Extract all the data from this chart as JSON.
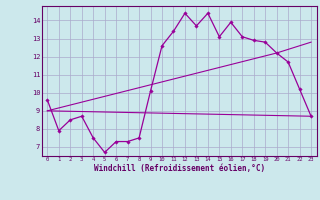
{
  "xlabel": "Windchill (Refroidissement éolien,°C)",
  "bg_color": "#cce8ec",
  "grid_color": "#aaaacc",
  "line_color": "#990099",
  "spine_color": "#660066",
  "x_ticks": [
    0,
    1,
    2,
    3,
    4,
    5,
    6,
    7,
    8,
    9,
    10,
    11,
    12,
    13,
    14,
    15,
    16,
    17,
    18,
    19,
    20,
    21,
    22,
    23
  ],
  "y_ticks": [
    7,
    8,
    9,
    10,
    11,
    12,
    13,
    14
  ],
  "ylim": [
    6.5,
    14.8
  ],
  "xlim": [
    -0.5,
    23.5
  ],
  "curve1_x": [
    0,
    1,
    2,
    3,
    4,
    5,
    6,
    7,
    8,
    9,
    10,
    11,
    12,
    13,
    14,
    15,
    16,
    17,
    18,
    19,
    20,
    21,
    22,
    23
  ],
  "curve1_y": [
    9.6,
    7.9,
    8.5,
    8.7,
    7.5,
    6.7,
    7.3,
    7.3,
    7.5,
    10.1,
    12.6,
    13.4,
    14.4,
    13.7,
    14.4,
    13.1,
    13.9,
    13.1,
    12.9,
    12.8,
    12.2,
    11.7,
    10.2,
    8.7
  ],
  "curve2_x": [
    0,
    23
  ],
  "curve2_y": [
    9.0,
    8.7
  ],
  "curve3_x": [
    0,
    20,
    23
  ],
  "curve3_y": [
    9.0,
    12.2,
    12.8
  ]
}
